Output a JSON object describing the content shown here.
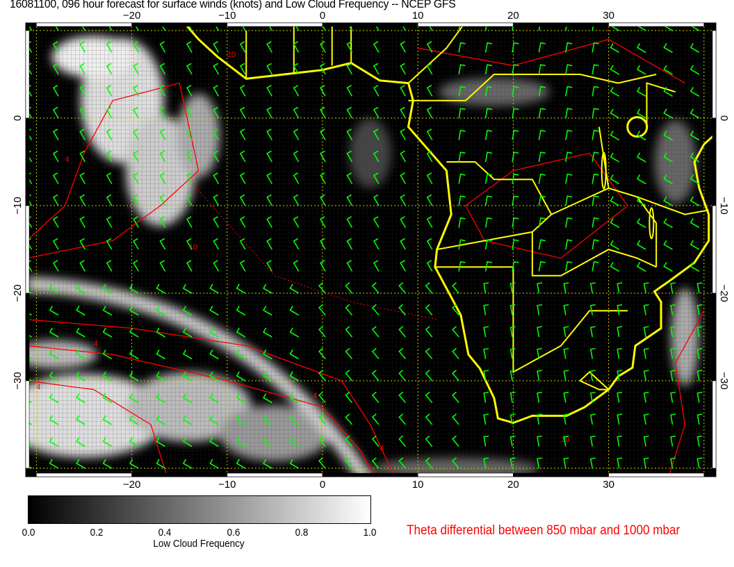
{
  "title": "16081100, 096 hour forecast for surface winds (knots) and Low Cloud Frequency -- NCEP GFS",
  "map": {
    "lon_ticks": [
      "−20",
      "−10",
      "0",
      "10",
      "20",
      "30"
    ],
    "lat_ticks": [
      "0",
      "−10",
      "−20",
      "−30"
    ],
    "lat_ticks_right": [
      "0",
      "−10",
      "−20",
      "−30"
    ],
    "colors": {
      "coast": "#ffff00",
      "wind_barbs": "#00ff00",
      "theta_contours": "#ff0000",
      "background": "#000000"
    },
    "contour_labels": [
      "10",
      "10",
      "4",
      "4",
      "4",
      "4",
      "4",
      "10"
    ]
  },
  "colorbar": {
    "ticks": [
      "0.0",
      "0.2",
      "0.4",
      "0.6",
      "0.8",
      "1.0"
    ],
    "label": "Low Cloud Frequency"
  },
  "theta_note": "Theta differential between 850 mbar and 1000 mbar"
}
